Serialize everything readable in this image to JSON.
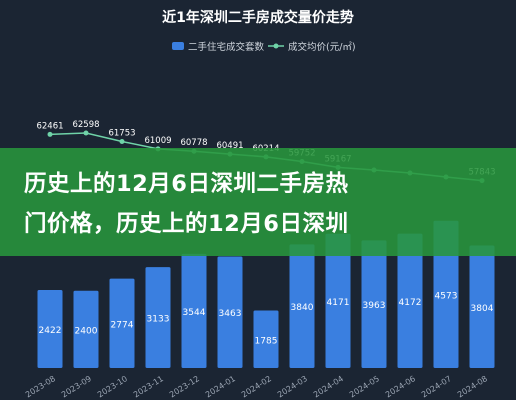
{
  "chart_data": {
    "type": "bar",
    "title": "近1年深圳二手房成交量价走势",
    "categories": [
      "2023-08",
      "2023-09",
      "2023-10",
      "2023-11",
      "2023-12",
      "2024-01",
      "2024-02",
      "2024-03",
      "2024-04",
      "2024-05",
      "2024-06",
      "2024-07",
      "2024-08"
    ],
    "series": [
      {
        "name": "二手住宅成交套数",
        "type": "bar",
        "color": "#3a7fe0",
        "values": [
          2422,
          2400,
          2774,
          3133,
          3544,
          3463,
          1785,
          3840,
          4171,
          3963,
          4172,
          4573,
          3804
        ]
      },
      {
        "name": "成交均价(元/㎡)",
        "type": "line",
        "color": "#6fd3a8",
        "values": [
          62461,
          62598,
          61753,
          61009,
          60778,
          60491,
          60214,
          59752,
          59167,
          58900,
          58600,
          58200,
          57843
        ]
      }
    ],
    "point_labels": [
      "62461",
      "62598",
      "61753",
      "61009",
      "60778",
      "60491",
      "60214",
      "59752",
      "59167",
      "",
      "",
      "",
      "57843"
    ],
    "grid": false,
    "legend_position": "top-center"
  },
  "banner": {
    "line1": "历史上的12月6日深圳二手房热",
    "line2": "门价格，历史上的12月6日深圳"
  }
}
